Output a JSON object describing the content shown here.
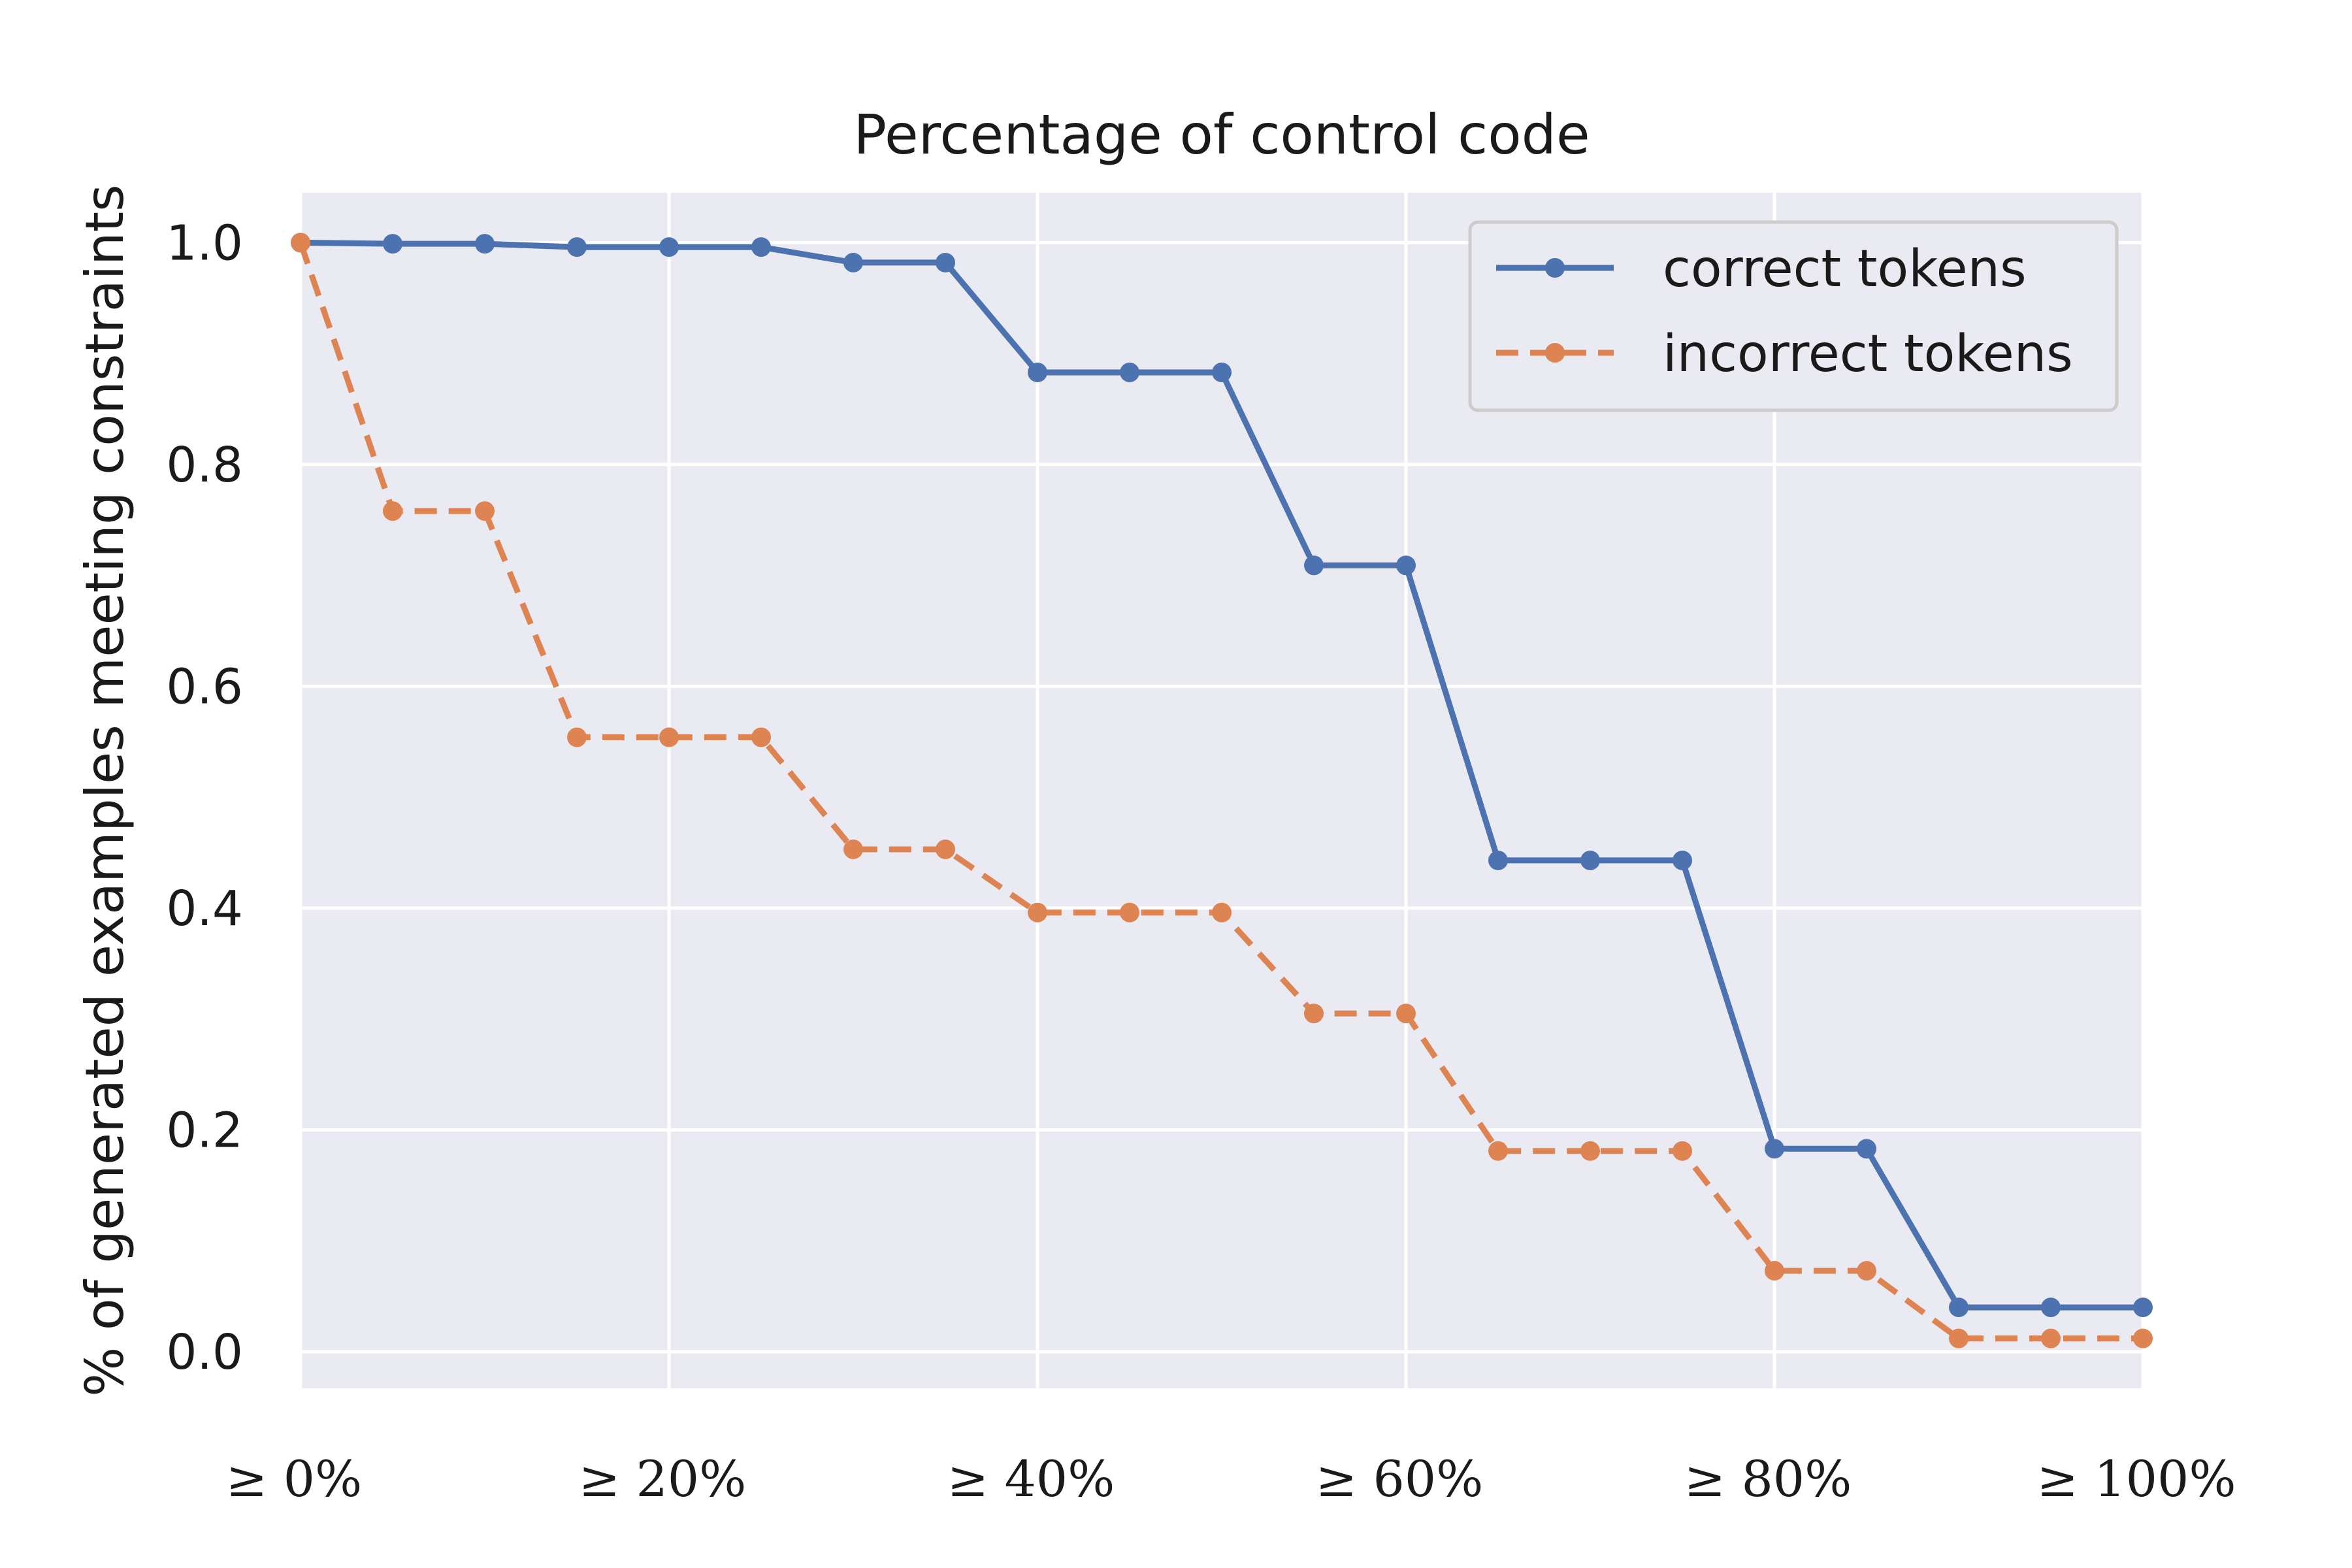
{
  "chart_data": {
    "type": "line",
    "title": "Percentage of control code",
    "xlabel": "",
    "ylabel": "% of generated examples meeting constraints",
    "x": [
      0,
      5,
      10,
      15,
      20,
      25,
      30,
      35,
      40,
      45,
      50,
      55,
      60,
      65,
      70,
      75,
      80,
      85,
      90,
      95,
      100
    ],
    "x_ticks": [
      0,
      20,
      40,
      60,
      80,
      100
    ],
    "x_tick_labels": [
      "≥ 0%",
      "≥ 20%",
      "≥ 40%",
      "≥ 60%",
      "≥ 80%",
      "≥ 100%"
    ],
    "xlim": [
      0,
      100
    ],
    "y_ticks": [
      0.0,
      0.2,
      0.4,
      0.6,
      0.8,
      1.0
    ],
    "y_tick_labels": [
      "0.0",
      "0.2",
      "0.4",
      "0.6",
      "0.8",
      "1.0"
    ],
    "ylim": [
      -0.033,
      1.045
    ],
    "grid": true,
    "legend_position": "top-right",
    "series": [
      {
        "name": "correct tokens",
        "color": "#4c72b0",
        "line_style": "solid",
        "marker": "circle",
        "values": [
          1.0,
          0.999,
          0.999,
          0.996,
          0.996,
          0.996,
          0.982,
          0.982,
          0.883,
          0.883,
          0.883,
          0.709,
          0.709,
          0.443,
          0.443,
          0.443,
          0.183,
          0.183,
          0.04,
          0.04,
          0.04
        ]
      },
      {
        "name": "incorrect tokens",
        "color": "#dd8452",
        "line_style": "dashed",
        "marker": "circle",
        "values": [
          1.0,
          0.758,
          0.758,
          0.554,
          0.554,
          0.554,
          0.453,
          0.453,
          0.396,
          0.396,
          0.396,
          0.305,
          0.305,
          0.181,
          0.181,
          0.181,
          0.073,
          0.073,
          0.012,
          0.012,
          0.012
        ]
      }
    ],
    "colors": {
      "plot_background": "#eaeaf2",
      "grid": "#ffffff",
      "legend_border": "#cccccc"
    }
  }
}
